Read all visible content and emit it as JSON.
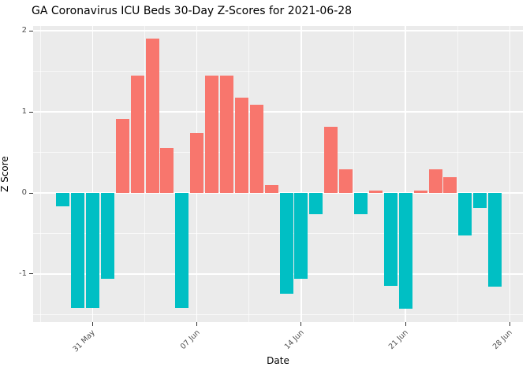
{
  "chart_data": {
    "type": "bar",
    "title": "GA Coronavirus ICU Beds 30-Day Z-Scores for 2021-06-28",
    "xlabel": "Date",
    "ylabel": "Z Score",
    "legend": "none",
    "grid": "on",
    "panel_bg": "#EBEBEB",
    "grid_color": "#FFFFFF",
    "colors": {
      "positive": "#F8766D",
      "negative": "#00BFC4"
    },
    "x": [
      "2021-05-29",
      "2021-05-30",
      "2021-05-31",
      "2021-06-01",
      "2021-06-02",
      "2021-06-03",
      "2021-06-04",
      "2021-06-05",
      "2021-06-06",
      "2021-06-07",
      "2021-06-08",
      "2021-06-09",
      "2021-06-10",
      "2021-06-11",
      "2021-06-12",
      "2021-06-13",
      "2021-06-14",
      "2021-06-15",
      "2021-06-16",
      "2021-06-17",
      "2021-06-18",
      "2021-06-19",
      "2021-06-20",
      "2021-06-21",
      "2021-06-22",
      "2021-06-23",
      "2021-06-24",
      "2021-06-25",
      "2021-06-26",
      "2021-06-27"
    ],
    "values": [
      -0.17,
      -1.42,
      -1.42,
      -1.06,
      0.91,
      1.45,
      1.9,
      0.55,
      -1.42,
      0.74,
      1.45,
      1.45,
      1.18,
      1.09,
      0.1,
      -1.24,
      -1.06,
      -0.26,
      0.82,
      0.29,
      -0.26,
      0.03,
      -1.15,
      -1.43,
      0.03,
      0.29,
      0.19,
      -0.52,
      -0.18,
      -1.16
    ],
    "x_tick_labels": [
      "31 May",
      "07 Jun",
      "14 Jun",
      "21 Jun",
      "28 Jun"
    ],
    "x_tick_indices": [
      2,
      9,
      16,
      23,
      30
    ],
    "x_minor_indices": [
      -1.5,
      5.5,
      12.5,
      19.5,
      26.5
    ],
    "y_ticks": [
      -1,
      0,
      1,
      2
    ],
    "y_minor_ticks": [
      -1.5,
      -0.5,
      0.5,
      1.5
    ],
    "ylim": [
      -1.59,
      2.06
    ]
  }
}
